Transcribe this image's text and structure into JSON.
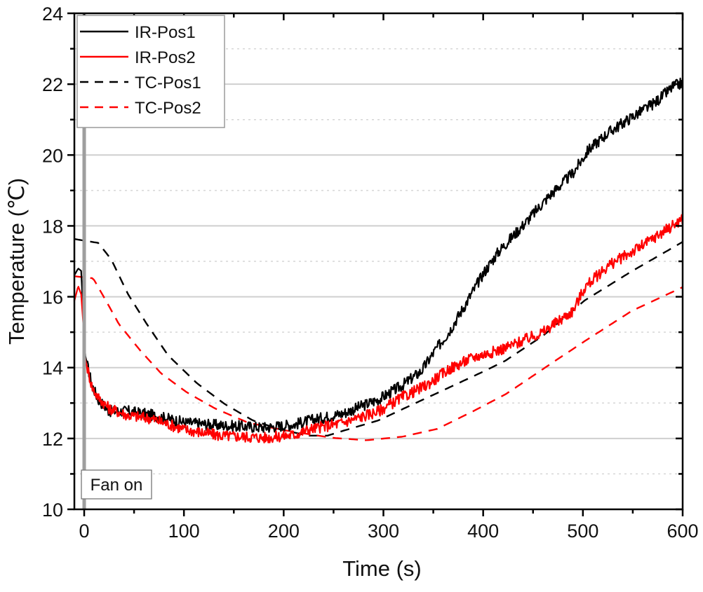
{
  "chart_data": {
    "type": "line",
    "title": "",
    "xlabel": "Time (s)",
    "ylabel": "Temperature (℃)",
    "xlim": [
      -10,
      600
    ],
    "ylim": [
      10,
      24
    ],
    "xticks": [
      0,
      100,
      200,
      300,
      400,
      500,
      600
    ],
    "xtick_labels": [
      "0",
      "100",
      "200",
      "300",
      "400",
      "500",
      "600"
    ],
    "xminor_ticks": [
      50,
      150,
      250,
      350,
      450,
      550
    ],
    "yticks": [
      10,
      12,
      14,
      16,
      18,
      20,
      22,
      24
    ],
    "ytick_labels": [
      "10",
      "12",
      "14",
      "16",
      "18",
      "20",
      "22",
      "24"
    ],
    "yminor_ticks": [
      11,
      13,
      15,
      17,
      19,
      21,
      23
    ],
    "grid": "horizontal: solid at major ticks, dotted at minor ticks",
    "legend_position": "top-left",
    "series": [
      {
        "name": "IR-Pos1",
        "color": "#000000",
        "style": "solid",
        "noisy": true,
        "x": [
          -10,
          -6,
          -3,
          -1,
          1,
          4,
          8,
          14,
          25,
          44,
          66,
          101,
          136,
          183,
          211,
          225,
          260,
          295,
          319,
          338,
          352,
          366,
          380,
          400,
          415,
          443,
          466,
          490,
          506,
          525,
          549,
          572,
          591,
          600
        ],
        "y": [
          16.6,
          16.8,
          16.73,
          15.54,
          14.35,
          13.96,
          13.5,
          13.1,
          12.77,
          12.77,
          12.67,
          12.45,
          12.37,
          12.31,
          12.4,
          12.5,
          12.71,
          13.1,
          13.5,
          13.9,
          14.49,
          15.02,
          15.68,
          16.65,
          17.26,
          18.11,
          18.84,
          19.49,
          20.16,
          20.62,
          21.07,
          21.47,
          21.94,
          22.04
        ]
      },
      {
        "name": "IR-Pos2",
        "color": "#ff0000",
        "style": "solid",
        "noisy": true,
        "x": [
          -10,
          -6,
          -3,
          -1,
          1,
          8,
          14,
          25,
          44,
          66,
          101,
          136,
          183,
          211,
          225,
          260,
          295,
          319,
          343,
          366,
          390,
          408,
          422,
          460,
          490,
          502,
          525,
          560,
          600
        ],
        "y": [
          15.87,
          16.3,
          16.07,
          15.28,
          14.23,
          13.44,
          13.16,
          12.85,
          12.65,
          12.57,
          12.25,
          12.08,
          12.02,
          12.1,
          12.25,
          12.45,
          12.77,
          13.16,
          13.5,
          13.96,
          14.29,
          14.43,
          14.55,
          15.0,
          15.6,
          16.27,
          16.87,
          17.45,
          18.2
        ]
      },
      {
        "name": "TC-Pos1",
        "color": "#000000",
        "style": "dashed",
        "noisy": false,
        "x": [
          -10,
          14,
          27,
          44,
          63,
          84,
          113,
          141,
          169,
          197,
          225,
          244,
          260,
          295,
          330,
          366,
          401,
          422,
          460,
          502,
          549,
          591,
          600
        ],
        "y": [
          17.63,
          17.52,
          17.06,
          16.07,
          15.22,
          14.35,
          13.56,
          12.97,
          12.51,
          12.25,
          12.08,
          12.08,
          12.22,
          12.51,
          12.97,
          13.44,
          13.9,
          14.19,
          14.9,
          15.9,
          16.72,
          17.4,
          17.55
        ]
      },
      {
        "name": "TC-Pos2",
        "color": "#ff0000",
        "style": "dashed",
        "noisy": false,
        "x": [
          -10,
          9,
          21,
          35,
          56,
          77,
          103,
          131,
          164,
          197,
          248,
          283,
          319,
          354,
          390,
          422,
          438,
          470,
          502,
          549,
          600
        ],
        "y": [
          16.58,
          16.52,
          15.93,
          15.22,
          14.49,
          13.84,
          13.3,
          12.85,
          12.45,
          12.25,
          12.02,
          11.95,
          12.05,
          12.27,
          12.77,
          13.24,
          13.54,
          14.15,
          14.75,
          15.6,
          16.27
        ]
      }
    ],
    "annotations": [
      {
        "type": "vline",
        "x": 0,
        "color": "#9e9e9e"
      },
      {
        "type": "textbox",
        "text": "Fan on",
        "x": 0,
        "y": 10.6
      }
    ]
  }
}
